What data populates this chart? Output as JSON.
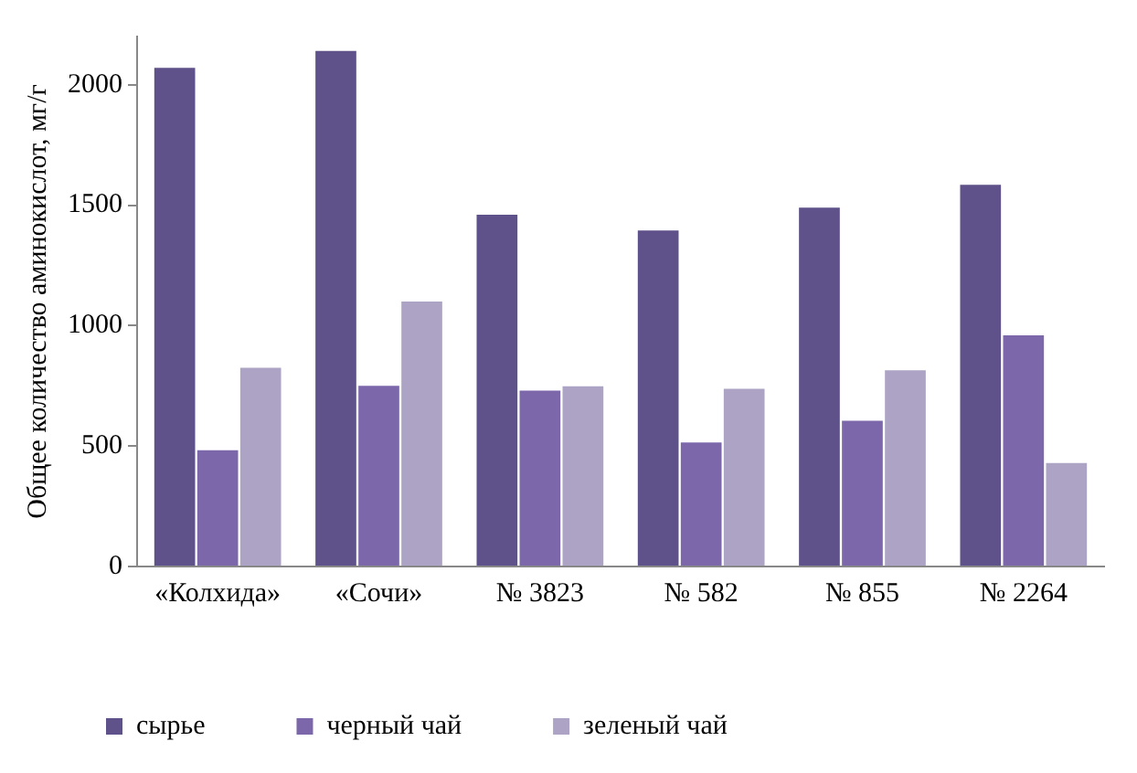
{
  "chart_data": {
    "type": "bar",
    "ylabel": "Общее количество аминокислот, мг/г",
    "categories": [
      "«Колхида»",
      "«Сочи»",
      "№ 3823",
      "№ 582",
      "№ 855",
      "№ 2264"
    ],
    "series": [
      {
        "name": "сырье",
        "color": "#5f5189",
        "values": [
          2070,
          2140,
          1460,
          1395,
          1490,
          1585
        ]
      },
      {
        "name": "черный чай",
        "color": "#7d67ab",
        "values": [
          483,
          750,
          730,
          515,
          605,
          960
        ]
      },
      {
        "name": "зеленый чай",
        "color": "#ada3c4",
        "values": [
          825,
          1100,
          748,
          738,
          815,
          430
        ]
      }
    ],
    "ylim": [
      0,
      2200
    ],
    "yticks": [
      0,
      500,
      1000,
      1500,
      2000
    ],
    "grid": false,
    "legend": "bottom"
  }
}
